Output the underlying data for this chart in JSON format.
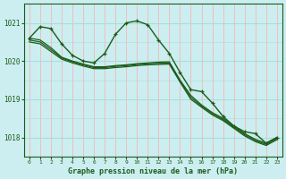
{
  "title": "Graphe pression niveau de la mer (hPa)",
  "bg_color": "#cceef0",
  "grid_color_major": "#aadddd",
  "grid_color_minor": "#ffaaaa",
  "line_color": "#1a5c1a",
  "xlim": [
    -0.5,
    23.5
  ],
  "ylim": [
    1017.5,
    1021.5
  ],
  "yticks": [
    1018,
    1019,
    1020,
    1021
  ],
  "series": [
    {
      "data": [
        1020.6,
        1020.9,
        1020.85,
        1020.45,
        1020.15,
        1020.0,
        1019.95,
        1020.2,
        1020.7,
        1021.0,
        1021.05,
        1020.95,
        1020.55,
        1020.2,
        1019.7,
        1019.25,
        1019.2,
        1018.9,
        1018.55,
        1018.3,
        1018.15,
        1018.1,
        1017.85,
        1018.0
      ],
      "marker": true,
      "lw": 1.0
    },
    {
      "data": [
        1020.6,
        1020.55,
        1020.35,
        1020.1,
        1020.0,
        1019.92,
        1019.85,
        1019.85,
        1019.88,
        1019.9,
        1019.93,
        1019.95,
        1019.97,
        1019.98,
        1019.5,
        1019.1,
        1018.85,
        1018.65,
        1018.5,
        1018.3,
        1018.1,
        1017.95,
        1017.85,
        1018.0
      ],
      "marker": false,
      "lw": 0.9
    },
    {
      "data": [
        1020.55,
        1020.5,
        1020.3,
        1020.08,
        1019.98,
        1019.9,
        1019.83,
        1019.83,
        1019.86,
        1019.88,
        1019.91,
        1019.93,
        1019.94,
        1019.95,
        1019.48,
        1019.05,
        1018.82,
        1018.62,
        1018.47,
        1018.27,
        1018.07,
        1017.92,
        1017.82,
        1017.97
      ],
      "marker": false,
      "lw": 0.9
    },
    {
      "data": [
        1020.5,
        1020.45,
        1020.25,
        1020.05,
        1019.95,
        1019.87,
        1019.8,
        1019.8,
        1019.83,
        1019.85,
        1019.88,
        1019.9,
        1019.91,
        1019.92,
        1019.45,
        1019.0,
        1018.79,
        1018.59,
        1018.44,
        1018.24,
        1018.04,
        1017.89,
        1017.79,
        1017.94
      ],
      "marker": false,
      "lw": 0.9
    }
  ]
}
